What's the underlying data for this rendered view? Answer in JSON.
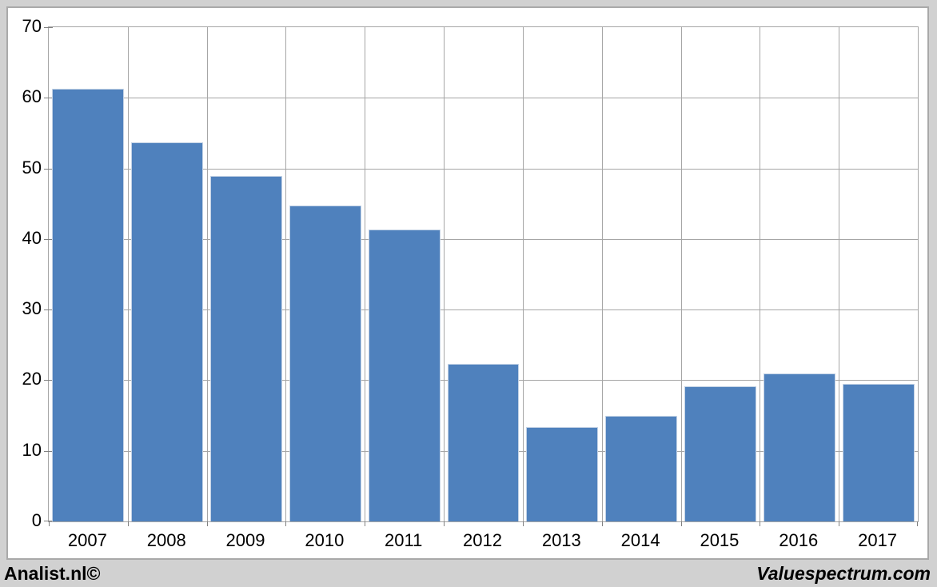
{
  "branding": {
    "left": "Analist.nl©",
    "right": "Valuespectrum.com"
  },
  "colors": {
    "page_background": "#d1d1d1",
    "plot_background": "#ffffff",
    "bar_fill": "#4f81bd",
    "bar_edge": "#c3d2e5",
    "gridline": "#a6a6a6",
    "axis_tick": "#808080",
    "canvas_border": "#a9a9a9",
    "text": "#000000"
  },
  "chart_data": {
    "type": "bar",
    "title": "",
    "xlabel": "",
    "ylabel": "",
    "categories": [
      "2007",
      "2008",
      "2009",
      "2010",
      "2011",
      "2012",
      "2013",
      "2014",
      "2015",
      "2016",
      "2017"
    ],
    "values": [
      61.3,
      53.7,
      48.9,
      44.7,
      41.4,
      22.3,
      13.4,
      15.0,
      19.2,
      21.0,
      19.5
    ],
    "ylim": [
      0,
      70
    ],
    "ytick_step": 10,
    "ytick_labels": [
      "0",
      "10",
      "20",
      "30",
      "40",
      "50",
      "60",
      "70"
    ],
    "grid": true,
    "legend": false,
    "bar_width_ratio": 0.91
  }
}
